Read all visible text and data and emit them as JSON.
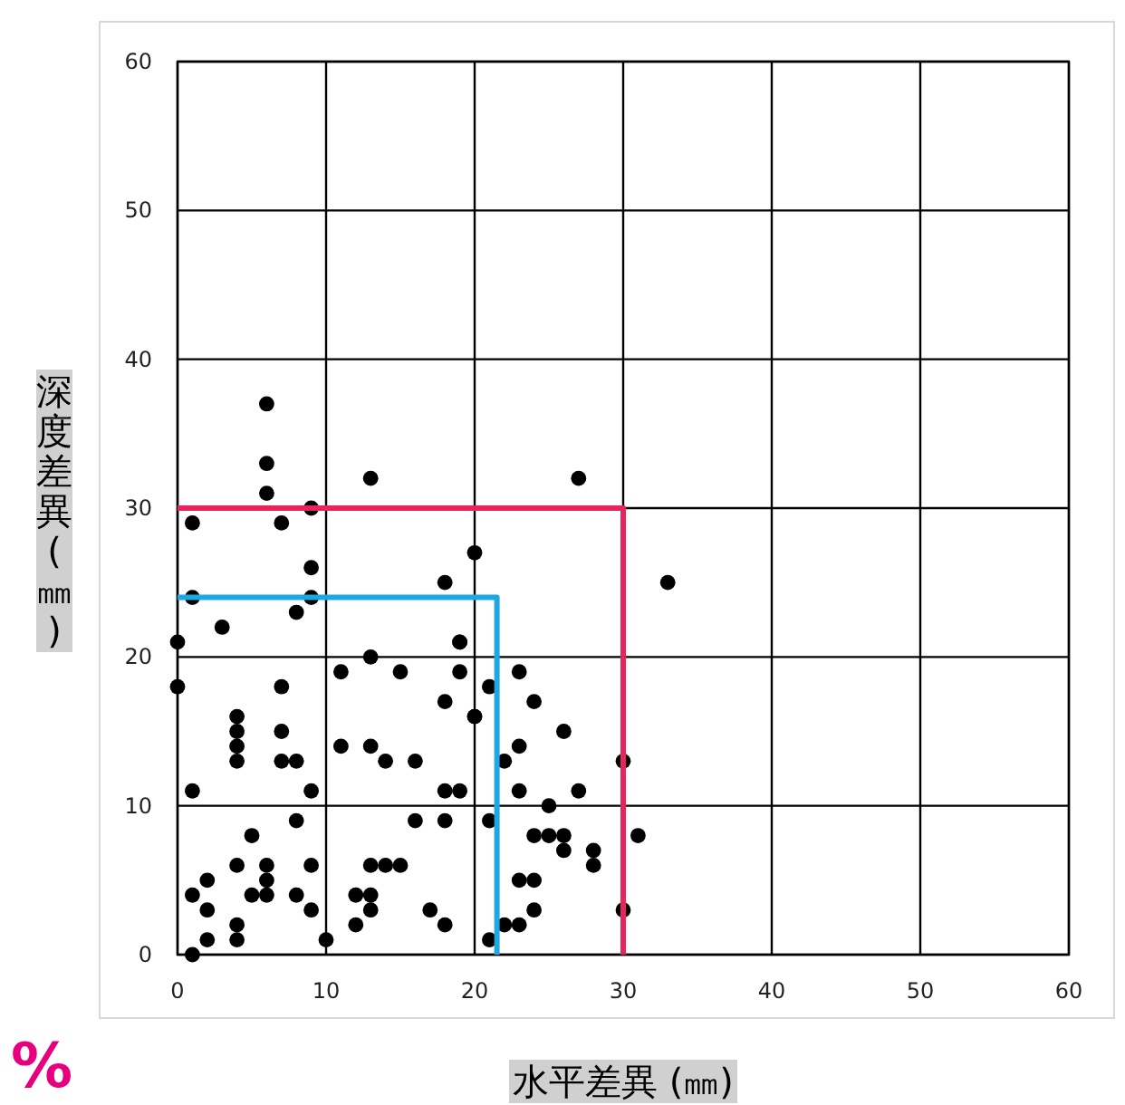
{
  "chart_data": {
    "type": "scatter",
    "xlabel": "水平差異 (㎜)",
    "ylabel": "深度差異(㎜)",
    "annotations": [
      "%"
    ],
    "xlim": [
      0,
      60
    ],
    "ylim": [
      0,
      60
    ],
    "xticks": [
      0,
      10,
      20,
      30,
      40,
      50,
      60
    ],
    "yticks": [
      0,
      10,
      20,
      30,
      40,
      50,
      60
    ],
    "grid": true,
    "marker": "circle",
    "series": [
      {
        "color": "#000000",
        "x": [
          6,
          6,
          6,
          9,
          1,
          7,
          13,
          27,
          9,
          20,
          18,
          1,
          9,
          8,
          3,
          0,
          19,
          13,
          11,
          15,
          19,
          33,
          0,
          7,
          18,
          20,
          4,
          4,
          4,
          4,
          7,
          7,
          8,
          11,
          13,
          14,
          16,
          1,
          9,
          18,
          19,
          23,
          24,
          26,
          23,
          22,
          30,
          23,
          27,
          25,
          21,
          24,
          25,
          26,
          26,
          28,
          28,
          31,
          23,
          24,
          24,
          30,
          22,
          23,
          21,
          8,
          16,
          18,
          5,
          4,
          6,
          6,
          9,
          13,
          14,
          15,
          2,
          1,
          5,
          6,
          8,
          12,
          13,
          2,
          9,
          13,
          17,
          4,
          4,
          2,
          12,
          18,
          10,
          1,
          20,
          21,
          19
        ],
        "values": [
          37,
          33,
          31,
          30,
          29,
          29,
          32,
          32,
          26,
          27,
          25,
          24,
          24,
          23,
          22,
          21,
          21,
          20,
          19,
          19,
          19,
          25,
          18,
          18,
          17,
          16,
          16,
          15,
          14,
          13,
          15,
          13,
          13,
          14,
          14,
          13,
          13,
          11,
          11,
          11,
          11,
          14,
          17,
          15,
          11,
          13,
          13,
          19,
          11,
          10,
          9,
          8,
          8,
          8,
          7,
          7,
          6,
          8,
          5,
          5,
          3,
          3,
          2,
          2,
          1,
          9,
          9,
          9,
          8,
          6,
          6,
          5,
          6,
          6,
          6,
          6,
          5,
          4,
          4,
          4,
          4,
          4,
          4,
          3,
          3,
          3,
          3,
          2,
          1,
          1,
          2,
          2,
          1,
          0,
          16,
          18,
          21
        ]
      },
      {
        "type": "line",
        "marker": "none",
        "color": "#e8245c",
        "x": [
          0,
          30,
          30
        ],
        "values": [
          30,
          30,
          0
        ]
      },
      {
        "type": "line",
        "marker": "none",
        "color": "#1ea7e0",
        "x": [
          0,
          21.5,
          21.5
        ],
        "values": [
          24,
          24,
          0
        ]
      }
    ]
  }
}
